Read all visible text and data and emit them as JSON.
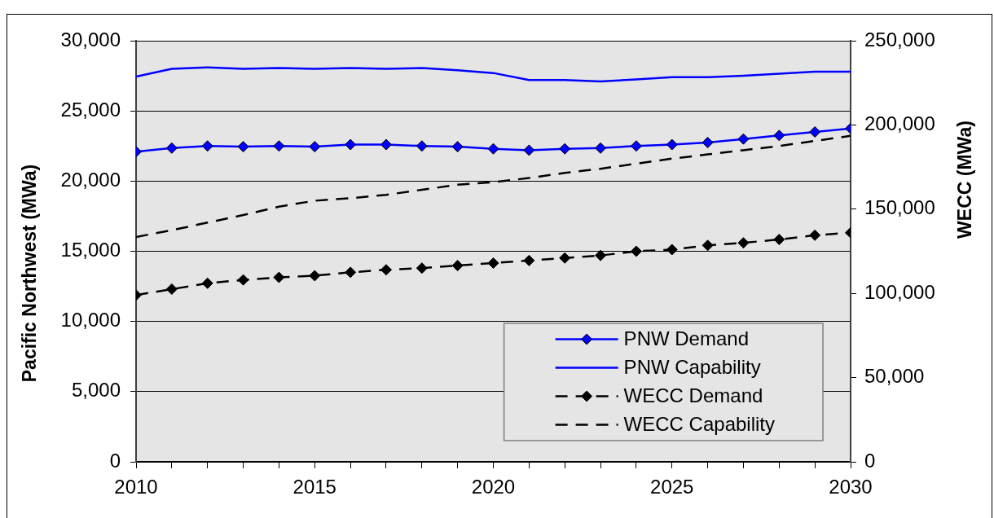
{
  "chart_data": {
    "type": "line",
    "x": [
      2010,
      2011,
      2012,
      2013,
      2014,
      2015,
      2016,
      2017,
      2018,
      2019,
      2020,
      2021,
      2022,
      2023,
      2024,
      2025,
      2026,
      2027,
      2028,
      2029,
      2030
    ],
    "xlim": [
      2010,
      2030
    ],
    "xticks": [
      2010,
      {
        "value": 2011,
        "label": null
      },
      {
        "value": 2012,
        "label": null
      },
      {
        "value": 2013,
        "label": null
      },
      {
        "value": 2014,
        "label": null
      },
      2015,
      {
        "value": 2016,
        "label": null
      },
      {
        "value": 2017,
        "label": null
      },
      {
        "value": 2018,
        "label": null
      },
      {
        "value": 2019,
        "label": null
      },
      2020,
      {
        "value": 2021,
        "label": null
      },
      {
        "value": 2022,
        "label": null
      },
      {
        "value": 2023,
        "label": null
      },
      {
        "value": 2024,
        "label": null
      },
      2025,
      {
        "value": 2026,
        "label": null
      },
      {
        "value": 2027,
        "label": null
      },
      {
        "value": 2028,
        "label": null
      },
      {
        "value": 2029,
        "label": null
      },
      2030
    ],
    "ylim": [
      0,
      30000
    ],
    "yticks": [
      0,
      {
        "value": 5000,
        "label": "5,000"
      },
      {
        "value": 10000,
        "label": "10,000"
      },
      {
        "value": 15000,
        "label": "15,000"
      },
      {
        "value": 20000,
        "label": "20,000"
      },
      {
        "value": 25000,
        "label": "25,000"
      },
      {
        "value": 30000,
        "label": "30,000"
      }
    ],
    "y2lim": [
      0,
      250000
    ],
    "y2ticks": [
      0,
      {
        "value": 50000,
        "label": "50,000"
      },
      {
        "value": 100000,
        "label": "100,000"
      },
      {
        "value": 150000,
        "label": "150,000"
      },
      {
        "value": 200000,
        "label": "200,000"
      },
      {
        "value": 250000,
        "label": "250,000"
      }
    ],
    "ylabel": "Pacific Northwest (MWa)",
    "y2label": "WECC (MWa)",
    "grid": "y",
    "legend": "bottom right",
    "series": [
      {
        "name": "PNW Demand",
        "color": "#0000ff",
        "marker": "diamond",
        "line_style": "solid",
        "values": [
          22100,
          22350,
          22500,
          22450,
          22500,
          22450,
          22600,
          22600,
          22500,
          22450,
          22300,
          22200,
          22300,
          22350,
          22500,
          22600,
          22750,
          23000,
          23250,
          23500,
          23750
        ]
      },
      {
        "name": "PNW Capability",
        "color": "#0000ff",
        "marker": "none",
        "line_style": "solid",
        "values": [
          27450,
          28000,
          28100,
          28000,
          28050,
          28000,
          28050,
          28000,
          28050,
          27900,
          27700,
          27200,
          27200,
          27100,
          27250,
          27400,
          27400,
          27500,
          27650,
          27800,
          27800
        ]
      },
      {
        "name": "WECC Demand",
        "color": "#000000",
        "marker": "diamond",
        "line_style": "dashed",
        "axis": "y2",
        "values": [
          99000,
          102500,
          106000,
          108000,
          109500,
          110500,
          112500,
          114000,
          115000,
          116500,
          118000,
          119500,
          121000,
          122500,
          125000,
          126000,
          128500,
          130000,
          132000,
          134500,
          136000
        ]
      },
      {
        "name": "WECC Capability",
        "color": "#000000",
        "marker": "none",
        "line_style": "dashed",
        "axis": "y2",
        "values": [
          133500,
          137500,
          142000,
          146500,
          151500,
          155000,
          156500,
          158500,
          161500,
          164500,
          166000,
          168500,
          171500,
          174000,
          177000,
          180000,
          182500,
          185000,
          187500,
          190500,
          193500
        ]
      }
    ]
  }
}
